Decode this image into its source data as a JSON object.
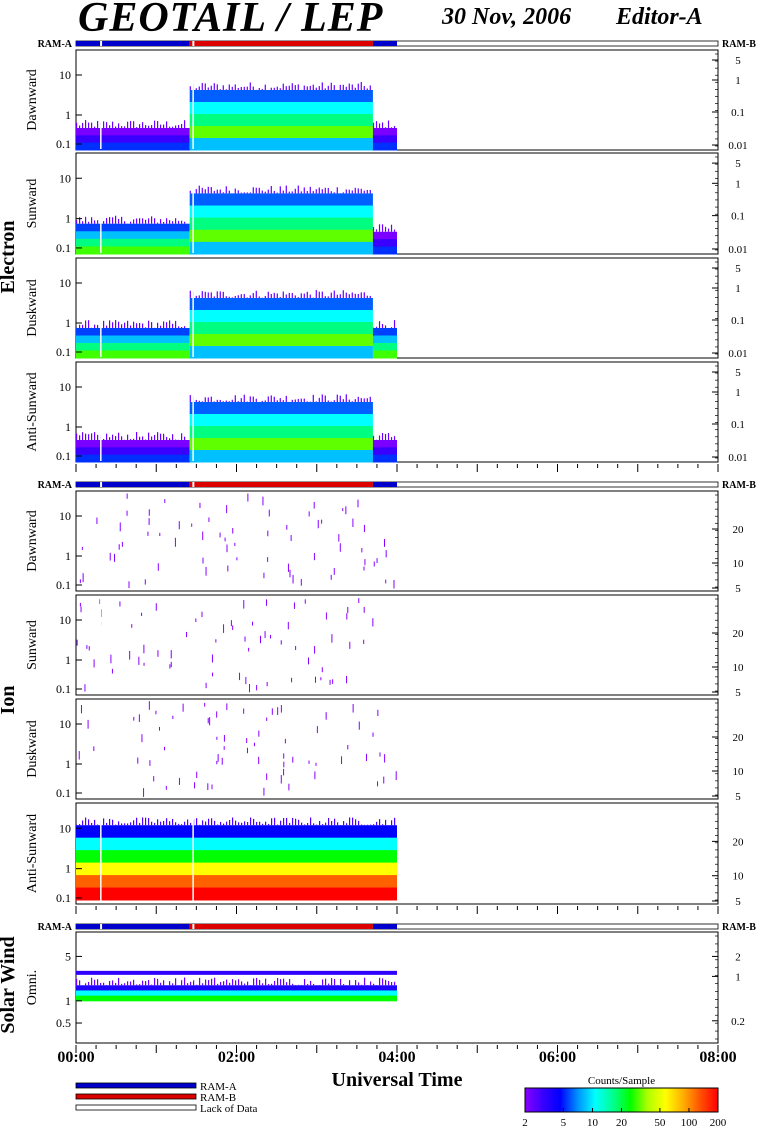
{
  "header": {
    "title": "GEOTAIL / LEP",
    "date": "30 Nov, 2006",
    "editor": "Editor-A"
  },
  "colors": {
    "ram_a": "#0000cc",
    "ram_b": "#dd0000",
    "colorbar": [
      "#8a00ff",
      "#3a00ff",
      "#0000ff",
      "#0090ff",
      "#00ffff",
      "#00ff90",
      "#00ff00",
      "#b0ff00",
      "#ffff00",
      "#ffb000",
      "#ff5000",
      "#ff0000"
    ]
  },
  "mode_bar": {
    "ram_a_label": "RAM-A",
    "ram_b_label": "RAM-B"
  },
  "groups": [
    {
      "label": "Electron",
      "panels": [
        {
          "label": "Dawnward",
          "left_ticks": [
            "10",
            "1",
            "0.1"
          ],
          "right_ticks": [
            "5",
            "1",
            "0.1",
            "0.01"
          ]
        },
        {
          "label": "Sunward",
          "left_ticks": [
            "10",
            "1",
            "0.1"
          ],
          "right_ticks": [
            "5",
            "1",
            "0.1",
            "0.01"
          ]
        },
        {
          "label": "Duskward",
          "left_ticks": [
            "10",
            "1",
            "0.1"
          ],
          "right_ticks": [
            "5",
            "1",
            "0.1",
            "0.01"
          ]
        },
        {
          "label": "Anti-Sunward",
          "left_ticks": [
            "10",
            "1",
            "0.1"
          ],
          "right_ticks": [
            "5",
            "1",
            "0.1",
            "0.01"
          ]
        }
      ]
    },
    {
      "label": "Ion",
      "panels": [
        {
          "label": "Dawnward",
          "left_ticks": [
            "10",
            "1",
            "0.1"
          ],
          "right_ticks": [
            "20",
            "10",
            "5"
          ]
        },
        {
          "label": "Sunward",
          "left_ticks": [
            "10",
            "1",
            "0.1"
          ],
          "right_ticks": [
            "20",
            "10",
            "5"
          ]
        },
        {
          "label": "Duskward",
          "left_ticks": [
            "10",
            "1",
            "0.1"
          ],
          "right_ticks": [
            "20",
            "10",
            "5"
          ]
        },
        {
          "label": "Anti-Sunward",
          "left_ticks": [
            "10",
            "1",
            "0.1"
          ],
          "right_ticks": [
            "20",
            "10",
            "5"
          ]
        }
      ]
    },
    {
      "label": "Solar Wind",
      "panels": [
        {
          "label": "Omni.",
          "left_ticks": [
            "5",
            "1",
            "0.5"
          ],
          "right_ticks": [
            "2",
            "1",
            "0.2"
          ]
        }
      ]
    }
  ],
  "x_axis": {
    "label": "Universal Time",
    "ticks": [
      "00:00",
      "02:00",
      "04:00",
      "06:00",
      "08:00"
    ]
  },
  "legend": {
    "items": [
      {
        "label": "RAM-A"
      },
      {
        "label": "RAM-B"
      },
      {
        "label": "Lack of Data"
      }
    ]
  },
  "colorbar": {
    "title": "Counts/Sample",
    "ticks": [
      "2",
      "5",
      "10",
      "20",
      "50",
      "100",
      "200"
    ]
  },
  "chart_data": {
    "type": "heatmap",
    "title": "GEOTAIL / LEP",
    "xlabel": "Universal Time",
    "x_range": [
      "00:00",
      "08:00"
    ],
    "data_end": "04:00",
    "colorbar_label": "Counts/Sample",
    "colorbar_range": [
      2,
      200
    ],
    "mode_intervals": [
      {
        "mode": "RAM-A",
        "start": "00:00",
        "end": "01:25"
      },
      {
        "mode": "RAM-B",
        "start": "01:25",
        "end": "03:42"
      },
      {
        "mode": "RAM-A",
        "start": "03:42",
        "end": "04:00"
      }
    ],
    "panels": [
      {
        "species": "Electron",
        "direction": "Dawnward",
        "activity": [
          [
            "00:00",
            "01:25",
            "low"
          ],
          [
            "01:25",
            "03:42",
            "high"
          ],
          [
            "03:42",
            "04:00",
            "low"
          ]
        ]
      },
      {
        "species": "Electron",
        "direction": "Sunward",
        "activity": [
          [
            "00:00",
            "01:25",
            "mid"
          ],
          [
            "01:25",
            "03:42",
            "high"
          ],
          [
            "03:42",
            "04:00",
            "low"
          ]
        ]
      },
      {
        "species": "Electron",
        "direction": "Duskward",
        "activity": [
          [
            "00:00",
            "01:25",
            "mid"
          ],
          [
            "01:25",
            "03:42",
            "high"
          ],
          [
            "03:42",
            "04:00",
            "mid"
          ]
        ]
      },
      {
        "species": "Electron",
        "direction": "Anti-Sunward",
        "activity": [
          [
            "00:00",
            "01:25",
            "low"
          ],
          [
            "01:25",
            "03:42",
            "high"
          ],
          [
            "03:42",
            "04:00",
            "low"
          ]
        ]
      },
      {
        "species": "Ion",
        "direction": "Dawnward",
        "activity": [
          [
            "00:00",
            "04:00",
            "sparse"
          ]
        ]
      },
      {
        "species": "Ion",
        "direction": "Sunward",
        "activity": [
          [
            "00:00",
            "04:00",
            "sparse"
          ]
        ]
      },
      {
        "species": "Ion",
        "direction": "Duskward",
        "activity": [
          [
            "00:00",
            "04:00",
            "sparse"
          ]
        ]
      },
      {
        "species": "Ion",
        "direction": "Anti-Sunward",
        "activity": [
          [
            "00:00",
            "04:00",
            "intense"
          ]
        ]
      },
      {
        "species": "Solar Wind",
        "direction": "Omni.",
        "activity": [
          [
            "00:00",
            "04:00",
            "two-bands"
          ]
        ]
      }
    ]
  }
}
